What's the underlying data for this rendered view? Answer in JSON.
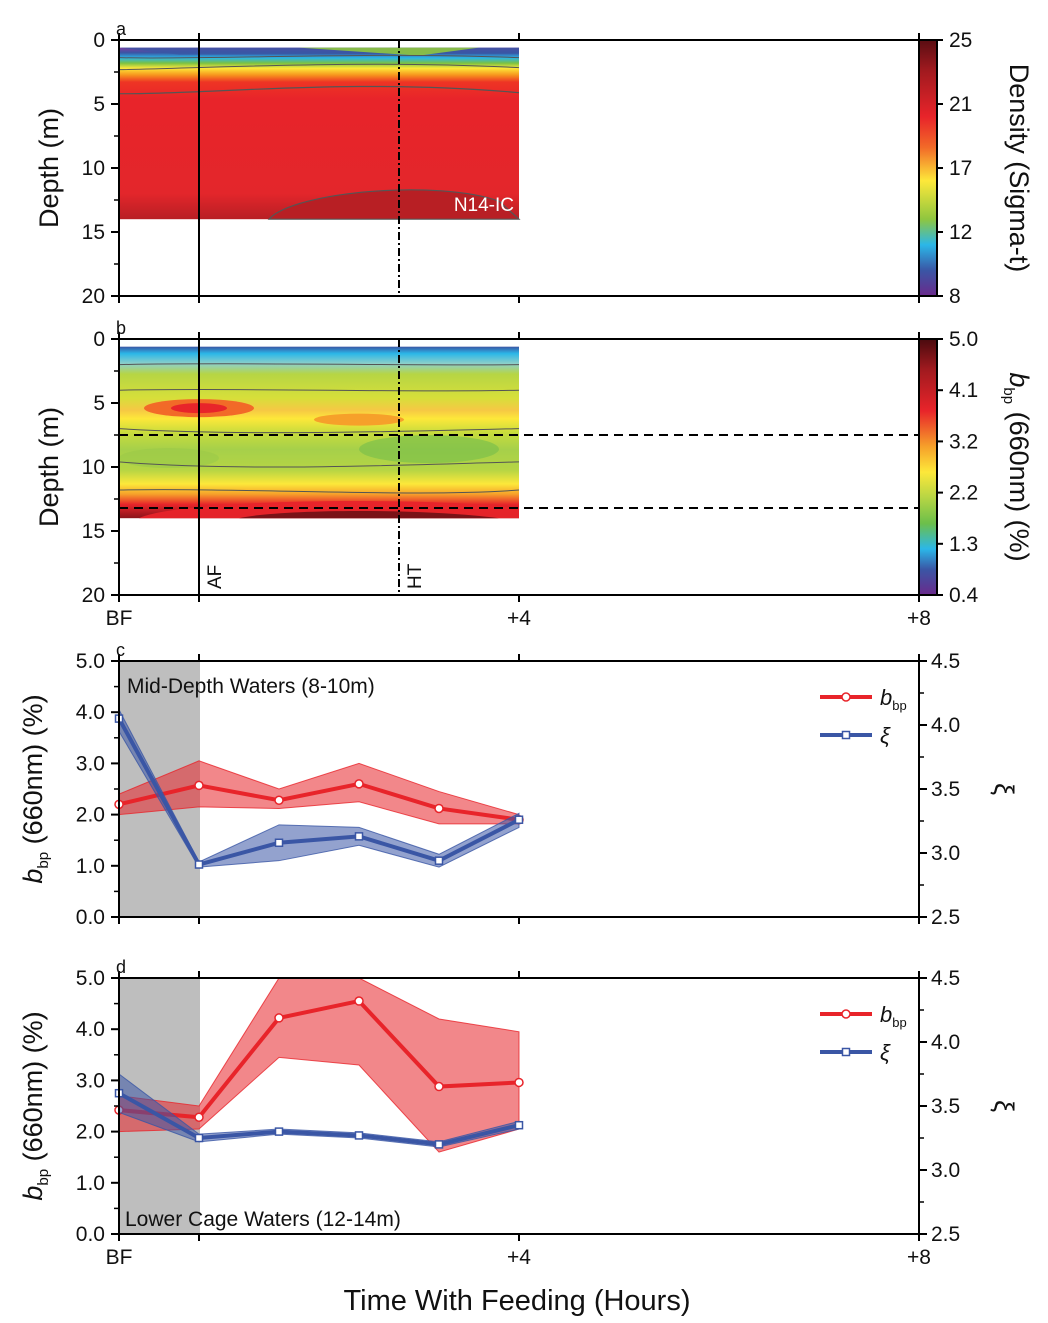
{
  "figure": {
    "xlabel": "Time With Feeding (Hours)",
    "x_ticks": [
      "BF",
      "+4",
      "+8"
    ]
  },
  "chart_data": [
    {
      "panel": "a",
      "type": "heatmap",
      "ylabel": "Depth (m)",
      "y_ticks": [
        "0",
        "5",
        "10",
        "15",
        "20"
      ],
      "ylim": [
        20,
        0
      ],
      "xlim_hours": [
        0,
        8
      ],
      "data_extent": {
        "x_hours": [
          0,
          4
        ],
        "depth_m": [
          0.6,
          14
        ]
      },
      "annotation": "N14-IC",
      "colorbar": {
        "label": "Density (Sigma-t)",
        "ticks": [
          "25",
          "21",
          "17",
          "12",
          "8"
        ],
        "range": [
          8,
          25
        ]
      },
      "markers": [
        {
          "x_hours": 0.8,
          "style": "solid"
        },
        {
          "x_hours": 2.8,
          "style": "dash-dot"
        }
      ]
    },
    {
      "panel": "b",
      "type": "heatmap",
      "ylabel": "Depth (m)",
      "y_ticks": [
        "0",
        "5",
        "10",
        "15",
        "20"
      ],
      "ylim": [
        20,
        0
      ],
      "xlim_hours": [
        0,
        8
      ],
      "data_extent": {
        "x_hours": [
          0,
          4
        ],
        "depth_m": [
          0.6,
          14
        ]
      },
      "colorbar": {
        "label_main": "b",
        "label_sub": "bp",
        "label_rest": " (660nm) (%)",
        "ticks": [
          "5.0",
          "4.1",
          "3.2",
          "2.2",
          "1.3",
          "0.4"
        ],
        "range": [
          0.4,
          5.0
        ]
      },
      "markers": [
        {
          "x_hours": 0.8,
          "style": "solid",
          "label": "AF"
        },
        {
          "x_hours": 2.8,
          "style": "dash-dot",
          "label": "HT"
        }
      ],
      "depth_lines_m": [
        7.5,
        13.2
      ]
    },
    {
      "panel": "c",
      "type": "line",
      "title": "Mid-Depth Waters (8-10m)",
      "x_hours": [
        0,
        0.8,
        1.6,
        2.4,
        3.2,
        4.0
      ],
      "ylim_left": [
        0,
        5
      ],
      "ylim_right": [
        2.5,
        4.5
      ],
      "y_ticks_left": [
        "0.0",
        "1.0",
        "2.0",
        "3.0",
        "4.0",
        "5.0"
      ],
      "y_ticks_right": [
        "2.5",
        "3.0",
        "3.5",
        "4.0",
        "4.5"
      ],
      "ylabel_left": {
        "main": "b",
        "sub": "bp",
        "rest": " (660nm) (%)"
      },
      "ylabel_right": "ξ",
      "shaded_x_hours": [
        0,
        0.8
      ],
      "series": [
        {
          "name": "b",
          "name_sub": "bp",
          "axis": "left",
          "color": "#e8242a",
          "values": [
            2.2,
            2.57,
            2.28,
            2.6,
            2.12,
            1.9
          ],
          "band_upper": [
            2.4,
            3.05,
            2.5,
            3.0,
            2.45,
            2.0
          ],
          "band_lower": [
            2.0,
            2.15,
            2.12,
            2.25,
            1.82,
            1.82
          ]
        },
        {
          "name": "ξ",
          "axis": "right",
          "color": "#3a56a5",
          "values": [
            4.05,
            2.91,
            3.08,
            3.13,
            2.94,
            3.26
          ],
          "band_upper": [
            4.12,
            2.93,
            3.22,
            3.2,
            2.99,
            3.31
          ],
          "band_lower": [
            3.95,
            2.89,
            2.94,
            3.06,
            2.89,
            3.2
          ]
        }
      ]
    },
    {
      "panel": "d",
      "type": "line",
      "title": "Lower Cage Waters (12-14m)",
      "x_hours": [
        0,
        0.8,
        1.6,
        2.4,
        3.2,
        4.0
      ],
      "ylim_left": [
        0,
        5
      ],
      "ylim_right": [
        2.5,
        4.5
      ],
      "y_ticks_left": [
        "0.0",
        "1.0",
        "2.0",
        "3.0",
        "4.0",
        "5.0"
      ],
      "y_ticks_right": [
        "2.5",
        "3.0",
        "3.5",
        "4.0",
        "4.5"
      ],
      "ylabel_left": {
        "main": "b",
        "sub": "bp",
        "rest": " (660nm) (%)"
      },
      "ylabel_right": "ξ",
      "shaded_x_hours": [
        0,
        0.8
      ],
      "series": [
        {
          "name": "b",
          "name_sub": "bp",
          "axis": "left",
          "color": "#e8242a",
          "values": [
            2.42,
            2.28,
            4.22,
            4.55,
            2.88,
            2.96
          ],
          "band_upper": [
            2.7,
            2.5,
            5.0,
            5.0,
            4.2,
            3.95
          ],
          "band_lower": [
            2.0,
            2.05,
            3.45,
            3.3,
            1.6,
            2.05
          ]
        },
        {
          "name": "ξ",
          "axis": "right",
          "color": "#3a56a5",
          "values": [
            3.6,
            3.25,
            3.3,
            3.27,
            3.2,
            3.35
          ],
          "band_upper": [
            3.75,
            3.28,
            3.32,
            3.29,
            3.22,
            3.38
          ],
          "band_lower": [
            3.45,
            3.22,
            3.28,
            3.25,
            3.18,
            3.32
          ]
        }
      ]
    }
  ]
}
